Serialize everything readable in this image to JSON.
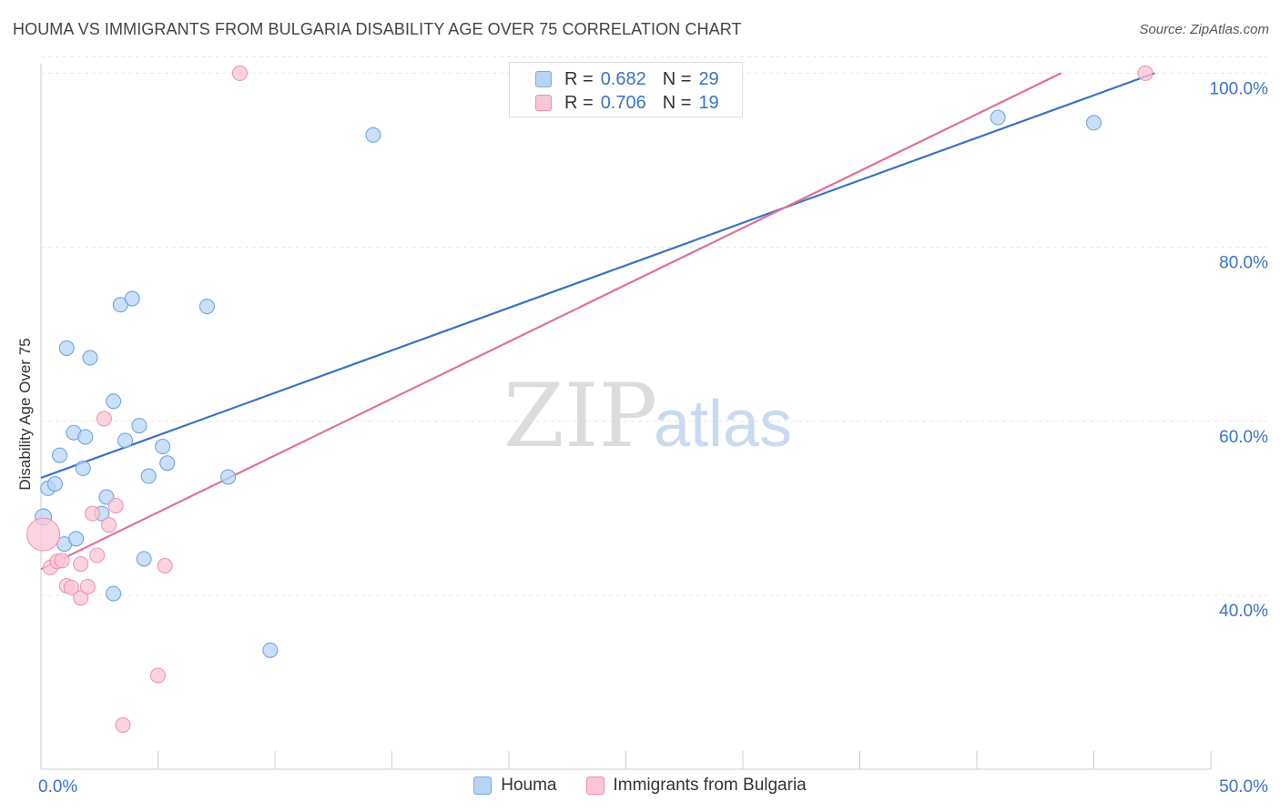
{
  "header": {
    "title": "HOUMA VS IMMIGRANTS FROM BULGARIA DISABILITY AGE OVER 75 CORRELATION CHART",
    "source": "Source: ZipAtlas.com"
  },
  "legend": {
    "rows": [
      {
        "r_label": "R =",
        "r_value": "0.682",
        "n_label": "N =",
        "n_value": "29"
      },
      {
        "r_label": "R =",
        "r_value": "0.706",
        "n_label": "N =",
        "n_value": "19"
      }
    ]
  },
  "watermark": {
    "zip": "ZIP",
    "atlas": "atlas"
  },
  "colors": {
    "houma_fill": "#b8d4f5",
    "houma_stroke": "#6a9edc",
    "houma_line": "#3a72c8",
    "bulgaria_fill": "#f9c6d6",
    "bulgaria_stroke": "#ee8fae",
    "bulgaria_line": "#e0709a",
    "grid": "#e6e6e6",
    "tick_label": "#3a72c8"
  },
  "chart_data": {
    "type": "scatter",
    "title": "HOUMA VS IMMIGRANTS FROM BULGARIA DISABILITY AGE OVER 75 CORRELATION CHART",
    "xlabel": "",
    "ylabel": "Disability Age Over 75",
    "xlim": [
      0,
      50
    ],
    "ylim": [
      20,
      102
    ],
    "x_tick_labels": [
      {
        "value": 0,
        "label": "0.0%"
      },
      {
        "value": 50,
        "label": "50.0%"
      }
    ],
    "y_tick_labels": [
      {
        "value": 40,
        "label": "40.0%"
      },
      {
        "value": 60,
        "label": "60.0%"
      },
      {
        "value": 80,
        "label": "80.0%"
      },
      {
        "value": 100,
        "label": "100.0%"
      }
    ],
    "x_minor_ticks": [
      0,
      5,
      10,
      15,
      20,
      25,
      30,
      35,
      40,
      45,
      50
    ],
    "grid": true,
    "legend_position": "bottom-center",
    "series": [
      {
        "name": "Houma",
        "R": 0.682,
        "N": 29,
        "trend": {
          "x": [
            0,
            47.6
          ],
          "y": [
            53.5,
            100
          ]
        },
        "points": [
          {
            "x": 0.1,
            "y": 49.0,
            "r": 9
          },
          {
            "x": 0.3,
            "y": 52.3,
            "r": 8
          },
          {
            "x": 0.6,
            "y": 52.8,
            "r": 8
          },
          {
            "x": 0.8,
            "y": 56.1,
            "r": 8
          },
          {
            "x": 1.0,
            "y": 45.9,
            "r": 8
          },
          {
            "x": 1.1,
            "y": 68.4,
            "r": 8
          },
          {
            "x": 1.4,
            "y": 58.7,
            "r": 8
          },
          {
            "x": 1.5,
            "y": 46.5,
            "r": 8
          },
          {
            "x": 1.8,
            "y": 54.6,
            "r": 8
          },
          {
            "x": 1.9,
            "y": 58.2,
            "r": 8
          },
          {
            "x": 2.1,
            "y": 67.3,
            "r": 8
          },
          {
            "x": 2.6,
            "y": 49.4,
            "r": 8
          },
          {
            "x": 2.8,
            "y": 51.3,
            "r": 8
          },
          {
            "x": 3.1,
            "y": 62.3,
            "r": 8
          },
          {
            "x": 3.1,
            "y": 40.2,
            "r": 8
          },
          {
            "x": 3.4,
            "y": 73.4,
            "r": 8
          },
          {
            "x": 3.6,
            "y": 57.8,
            "r": 8
          },
          {
            "x": 3.9,
            "y": 74.1,
            "r": 8
          },
          {
            "x": 4.2,
            "y": 59.5,
            "r": 8
          },
          {
            "x": 4.4,
            "y": 44.2,
            "r": 8
          },
          {
            "x": 4.6,
            "y": 53.7,
            "r": 8
          },
          {
            "x": 5.2,
            "y": 57.1,
            "r": 8
          },
          {
            "x": 5.4,
            "y": 55.2,
            "r": 8
          },
          {
            "x": 7.1,
            "y": 73.2,
            "r": 8
          },
          {
            "x": 8.0,
            "y": 53.6,
            "r": 8
          },
          {
            "x": 9.8,
            "y": 33.7,
            "r": 8
          },
          {
            "x": 14.2,
            "y": 92.9,
            "r": 8
          },
          {
            "x": 40.9,
            "y": 94.9,
            "r": 8
          },
          {
            "x": 45.0,
            "y": 94.3,
            "r": 8
          }
        ]
      },
      {
        "name": "Immigrants from Bulgaria",
        "R": 0.706,
        "N": 19,
        "trend": {
          "x": [
            0,
            43.6
          ],
          "y": [
            43.0,
            100
          ]
        },
        "points": [
          {
            "x": 0.1,
            "y": 47.0,
            "r": 18
          },
          {
            "x": 0.4,
            "y": 43.2,
            "r": 8
          },
          {
            "x": 0.7,
            "y": 43.9,
            "r": 8
          },
          {
            "x": 0.9,
            "y": 44.0,
            "r": 8
          },
          {
            "x": 1.1,
            "y": 41.1,
            "r": 8
          },
          {
            "x": 1.3,
            "y": 40.9,
            "r": 8
          },
          {
            "x": 1.7,
            "y": 43.6,
            "r": 8
          },
          {
            "x": 1.7,
            "y": 39.7,
            "r": 8
          },
          {
            "x": 2.0,
            "y": 41.0,
            "r": 8
          },
          {
            "x": 2.2,
            "y": 49.4,
            "r": 8
          },
          {
            "x": 2.4,
            "y": 44.6,
            "r": 8
          },
          {
            "x": 2.7,
            "y": 60.3,
            "r": 8
          },
          {
            "x": 2.9,
            "y": 48.1,
            "r": 8
          },
          {
            "x": 3.2,
            "y": 50.3,
            "r": 8
          },
          {
            "x": 3.5,
            "y": 25.1,
            "r": 8
          },
          {
            "x": 5.0,
            "y": 30.8,
            "r": 8
          },
          {
            "x": 5.3,
            "y": 43.4,
            "r": 8
          },
          {
            "x": 8.5,
            "y": 100.0,
            "r": 8
          },
          {
            "x": 47.2,
            "y": 100.0,
            "r": 8
          }
        ]
      }
    ]
  }
}
